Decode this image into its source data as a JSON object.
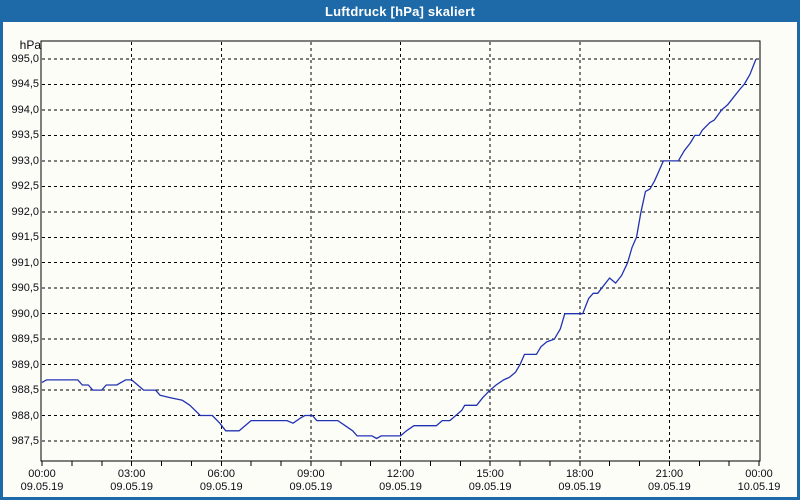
{
  "window": {
    "title": "Luftdruck [hPa] skaliert"
  },
  "colors": {
    "titlebar": "#1e6aa8",
    "window_border": "#1e6aa8",
    "background": "#fdfdf8",
    "grid": "#000000",
    "axis": "#000000",
    "label_text": "#0c0c14",
    "title_text": "#ffffff",
    "line": "#2233b2"
  },
  "chart_data": {
    "type": "line",
    "title": "Luftdruck [hPa] skaliert",
    "ylabel": "hPa",
    "xlabel": "",
    "ylim": [
      987.5,
      995.0
    ],
    "y_tick_step": 0.5,
    "grid": "dashed",
    "legend_position": "none",
    "y_ticks": [
      "995,0",
      "994,5",
      "994,0",
      "993,5",
      "993,0",
      "992,5",
      "992,0",
      "991,5",
      "991,0",
      "990,5",
      "990,0",
      "989,5",
      "989,0",
      "988,5",
      "988,0",
      "987,5"
    ],
    "x_range_hours": [
      0,
      24
    ],
    "x_major_step_hours": 3,
    "x_minor_step_hours": 1,
    "x_ticks": [
      {
        "hour": 0,
        "time": "00:00",
        "date": "09.05.19"
      },
      {
        "hour": 3,
        "time": "03:00",
        "date": "09.05.19"
      },
      {
        "hour": 6,
        "time": "06:00",
        "date": "09.05.19"
      },
      {
        "hour": 9,
        "time": "09:00",
        "date": "09.05.19"
      },
      {
        "hour": 12,
        "time": "12:00",
        "date": "09.05.19"
      },
      {
        "hour": 15,
        "time": "15:00",
        "date": "09.05.19"
      },
      {
        "hour": 18,
        "time": "18:00",
        "date": "09.05.19"
      },
      {
        "hour": 21,
        "time": "21:00",
        "date": "09.05.19"
      },
      {
        "hour": 24,
        "time": "00:00",
        "date": "10.05.19"
      }
    ],
    "series": [
      {
        "name": "Luftdruck",
        "color": "#2233b2",
        "points": [
          [
            0,
            988.65
          ],
          [
            0.15,
            988.7
          ],
          [
            1.2,
            988.7
          ],
          [
            1.35,
            988.6
          ],
          [
            1.55,
            988.6
          ],
          [
            1.7,
            988.5
          ],
          [
            2.0,
            988.5
          ],
          [
            2.15,
            988.6
          ],
          [
            2.5,
            988.6
          ],
          [
            2.8,
            988.7
          ],
          [
            3.0,
            988.7
          ],
          [
            3.1,
            988.65
          ],
          [
            3.4,
            988.5
          ],
          [
            3.8,
            988.5
          ],
          [
            3.95,
            988.4
          ],
          [
            4.3,
            988.35
          ],
          [
            4.7,
            988.3
          ],
          [
            4.95,
            988.2
          ],
          [
            5.3,
            988.0
          ],
          [
            5.7,
            988.0
          ],
          [
            5.95,
            987.85
          ],
          [
            6.15,
            987.7
          ],
          [
            6.6,
            987.7
          ],
          [
            7.0,
            987.9
          ],
          [
            8.2,
            987.9
          ],
          [
            8.4,
            987.85
          ],
          [
            8.65,
            987.95
          ],
          [
            8.8,
            988.0
          ],
          [
            9.05,
            988.0
          ],
          [
            9.2,
            987.9
          ],
          [
            9.9,
            987.9
          ],
          [
            10.15,
            987.8
          ],
          [
            10.4,
            987.7
          ],
          [
            10.55,
            987.6
          ],
          [
            11.05,
            987.6
          ],
          [
            11.2,
            987.55
          ],
          [
            11.35,
            987.6
          ],
          [
            12.0,
            987.6
          ],
          [
            12.2,
            987.7
          ],
          [
            12.45,
            987.8
          ],
          [
            13.2,
            987.8
          ],
          [
            13.4,
            987.9
          ],
          [
            13.65,
            987.9
          ],
          [
            13.85,
            988.0
          ],
          [
            14.05,
            988.1
          ],
          [
            14.15,
            988.2
          ],
          [
            14.55,
            988.2
          ],
          [
            14.75,
            988.35
          ],
          [
            15.0,
            988.5
          ],
          [
            15.2,
            988.6
          ],
          [
            15.45,
            988.7
          ],
          [
            15.65,
            988.75
          ],
          [
            15.85,
            988.85
          ],
          [
            16.0,
            989.0
          ],
          [
            16.15,
            989.2
          ],
          [
            16.55,
            989.2
          ],
          [
            16.7,
            989.35
          ],
          [
            16.9,
            989.45
          ],
          [
            17.15,
            989.5
          ],
          [
            17.35,
            989.7
          ],
          [
            17.5,
            990.0
          ],
          [
            18.1,
            990.0
          ],
          [
            18.3,
            990.3
          ],
          [
            18.45,
            990.4
          ],
          [
            18.6,
            990.4
          ],
          [
            18.8,
            990.55
          ],
          [
            19.0,
            990.7
          ],
          [
            19.2,
            990.6
          ],
          [
            19.4,
            990.75
          ],
          [
            19.6,
            991.0
          ],
          [
            19.75,
            991.3
          ],
          [
            19.9,
            991.5
          ],
          [
            20.05,
            992.0
          ],
          [
            20.2,
            992.4
          ],
          [
            20.35,
            992.45
          ],
          [
            20.5,
            992.6
          ],
          [
            20.65,
            992.8
          ],
          [
            20.8,
            993.0
          ],
          [
            21.3,
            993.0
          ],
          [
            21.5,
            993.2
          ],
          [
            21.7,
            993.35
          ],
          [
            21.85,
            993.5
          ],
          [
            22.0,
            993.5
          ],
          [
            22.1,
            993.6
          ],
          [
            22.35,
            993.75
          ],
          [
            22.5,
            993.8
          ],
          [
            22.75,
            994.0
          ],
          [
            22.95,
            994.1
          ],
          [
            23.15,
            994.25
          ],
          [
            23.35,
            994.4
          ],
          [
            23.5,
            994.5
          ],
          [
            23.7,
            994.7
          ],
          [
            23.8,
            994.85
          ],
          [
            23.9,
            995.0
          ]
        ]
      }
    ]
  }
}
